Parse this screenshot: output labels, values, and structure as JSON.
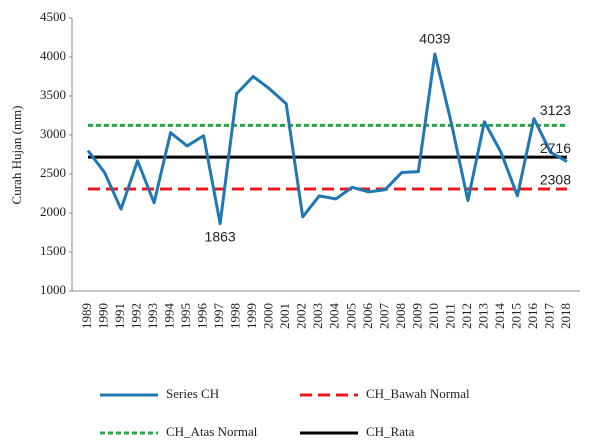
{
  "chart_data": {
    "type": "line",
    "y_label": "Curah Hujan (mm)",
    "categories": [
      "1989",
      "1990",
      "1991",
      "1992",
      "1993",
      "1994",
      "1995",
      "1996",
      "1997",
      "1998",
      "1999",
      "2000",
      "2001",
      "2002",
      "2003",
      "2004",
      "2005",
      "2006",
      "2007",
      "2008",
      "2009",
      "2010",
      "2011",
      "2012",
      "2013",
      "2014",
      "2015",
      "2016",
      "2017",
      "2018"
    ],
    "series": [
      {
        "name": "Series CH",
        "color": "#1f77b4",
        "values": [
          2800,
          2520,
          2050,
          2670,
          2130,
          3030,
          2860,
          2990,
          1863,
          3530,
          3750,
          3590,
          3400,
          1950,
          2220,
          2180,
          2330,
          2270,
          2300,
          2520,
          2530,
          4039,
          3150,
          2160,
          3170,
          2780,
          2220,
          3210,
          2780,
          2660
        ]
      }
    ],
    "reference_lines": [
      {
        "name": "CH_Bawah Normal",
        "color": "#e8181e",
        "value": 2308,
        "dash": "dashed"
      },
      {
        "name": "CH_Atas Normal",
        "color": "#22aa44",
        "value": 3123,
        "dash": "dotted"
      },
      {
        "name": "CH_Rata",
        "color": "#000000",
        "value": 2716,
        "dash": "solid"
      }
    ],
    "ylim": [
      1000,
      4500
    ],
    "yticks": [
      1000,
      1500,
      2000,
      2500,
      3000,
      3500,
      4000,
      4500
    ]
  }
}
